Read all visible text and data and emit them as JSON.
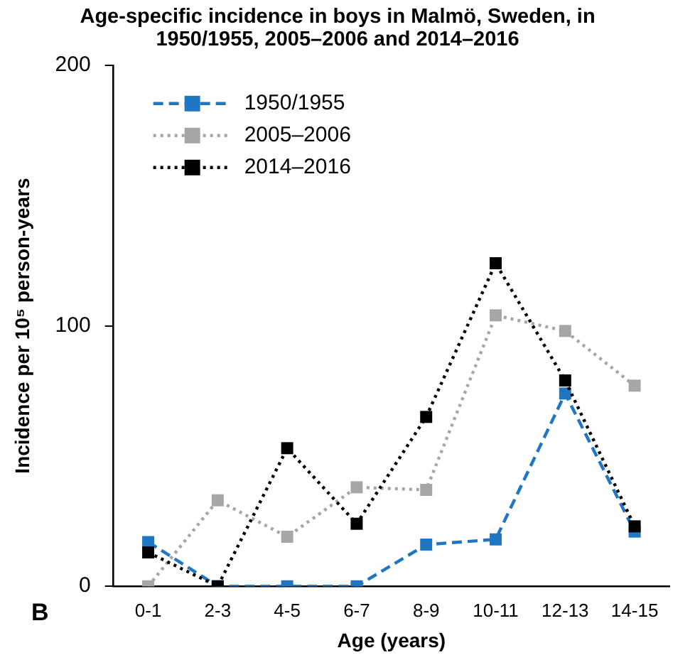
{
  "chart_data": {
    "type": "line",
    "title": "Age-specific incidence in boys in Malmö, Sweden, in 1950/1955, 2005–2006 and 2014–2016",
    "xlabel": "Age (years)",
    "ylabel": "Incidence per 10⁵ person-years",
    "categories": [
      "0-1",
      "2-3",
      "4-5",
      "6-7",
      "8-9",
      "10-11",
      "12-13",
      "14-15"
    ],
    "ylim": [
      0,
      200
    ],
    "yticks": [
      0,
      100,
      200
    ],
    "grid": false,
    "legend": "top left",
    "marker": "square",
    "annotations": [
      "B"
    ],
    "series": [
      {
        "name": "1950/1955",
        "color": "#1f77c4",
        "line_style": "dashed",
        "values": [
          17,
          0,
          0,
          0,
          16,
          18,
          74,
          21
        ]
      },
      {
        "name": "2005–2006",
        "color": "#a6a6a6",
        "line_style": "dotted",
        "values": [
          0,
          33,
          19,
          38,
          37,
          104,
          98,
          77
        ]
      },
      {
        "name": "2014–2016",
        "color": "#000000",
        "line_style": "dotted",
        "values": [
          13,
          0,
          53,
          24,
          65,
          124,
          79,
          23
        ]
      }
    ]
  }
}
